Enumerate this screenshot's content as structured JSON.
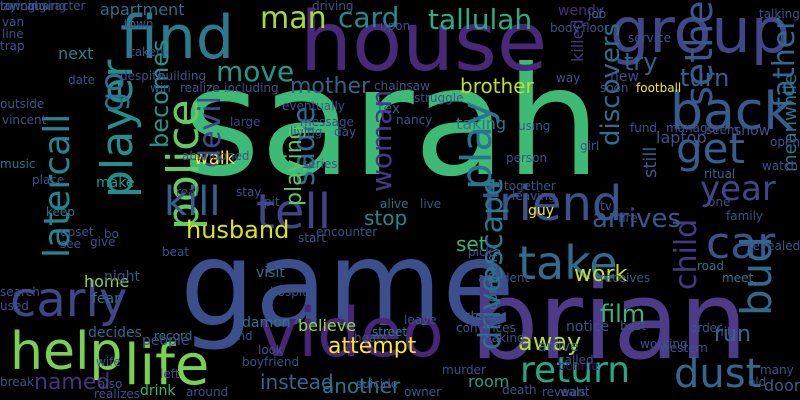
{
  "words": [
    {
      "text": "sarah",
      "color": "#3dbb76",
      "vertical": false
    },
    {
      "text": "game",
      "color": "#3b4f8c",
      "vertical": false
    },
    {
      "text": "brian",
      "color": "#4d3b8a",
      "vertical": false
    },
    {
      "text": "house",
      "color": "#482878",
      "vertical": false
    },
    {
      "text": "find",
      "color": "#2b7a8e",
      "vertical": false
    },
    {
      "text": "video",
      "color": "#482677",
      "vertical": false
    },
    {
      "text": "group",
      "color": "#3f4788",
      "vertical": false
    },
    {
      "text": "back",
      "color": "#365c8d",
      "vertical": false
    },
    {
      "text": "take",
      "color": "#2f6c8e",
      "vertical": false
    },
    {
      "text": "life",
      "color": "#79d151",
      "vertical": false
    },
    {
      "text": "help",
      "color": "#7ad151",
      "vertical": false
    },
    {
      "text": "friend",
      "color": "#3b528b",
      "vertical": false
    },
    {
      "text": "player",
      "color": "#21908d",
      "vertical": true
    },
    {
      "text": "police",
      "color": "#63cb5f",
      "vertical": true
    },
    {
      "text": "carly",
      "color": "#3f4788",
      "vertical": false
    },
    {
      "text": "tell",
      "color": "#414487",
      "vertical": false
    },
    {
      "text": "kill",
      "color": "#35608d",
      "vertical": false
    },
    {
      "text": "car",
      "color": "#3b528b",
      "vertical": false
    },
    {
      "text": "play",
      "color": "#2c738e",
      "vertical": true
    },
    {
      "text": "latercall",
      "color": "#25858e",
      "vertical": true
    },
    {
      "text": "dust",
      "color": "#31688e",
      "vertical": false
    },
    {
      "text": "return",
      "color": "#22a884",
      "vertical": false
    },
    {
      "text": "get",
      "color": "#355f8d",
      "vertical": false
    },
    {
      "text": "sethe",
      "color": "#38598c",
      "vertical": true
    },
    {
      "text": "bud",
      "color": "#31688e",
      "vertical": true
    },
    {
      "text": "father",
      "color": "#31688e",
      "vertical": true
    },
    {
      "text": "year",
      "color": "#3f4788",
      "vertical": false
    },
    {
      "text": "devil",
      "color": "#3e4a89",
      "vertical": true
    },
    {
      "text": "woman",
      "color": "#443983",
      "vertical": true
    },
    {
      "text": "sadie",
      "color": "#2e6e8e",
      "vertical": true
    },
    {
      "text": "card",
      "color": "#228c8d",
      "vertical": false
    },
    {
      "text": "tallulah",
      "color": "#28ae80",
      "vertical": false
    },
    {
      "text": "man",
      "color": "#a5db36",
      "vertical": false
    },
    {
      "text": "go",
      "color": "#2d718e",
      "vertical": true
    },
    {
      "text": "move",
      "color": "#1f9a8a",
      "vertical": false
    },
    {
      "text": "husband",
      "color": "#dde318",
      "vertical": false
    },
    {
      "text": "child",
      "color": "#443a83",
      "vertical": true
    },
    {
      "text": "escape",
      "color": "#2a788e",
      "vertical": true
    },
    {
      "text": "drive",
      "color": "#2e6f8e",
      "vertical": true
    },
    {
      "text": "away",
      "color": "#b8de29",
      "vertical": false
    },
    {
      "text": "attempt",
      "color": "#fde725",
      "vertical": false
    },
    {
      "text": "arrives",
      "color": "#38588c",
      "vertical": false
    },
    {
      "text": "discovers",
      "color": "#2d708e",
      "vertical": true
    },
    {
      "text": "try",
      "color": "#33628d",
      "vertical": false
    },
    {
      "text": "turn",
      "color": "#33628d",
      "vertical": false
    },
    {
      "text": "becomes",
      "color": "#1f968b",
      "vertical": true
    },
    {
      "text": "brother",
      "color": "#bddf26",
      "vertical": false
    },
    {
      "text": "mother",
      "color": "#33628d",
      "vertical": false
    },
    {
      "text": "killed",
      "color": "#443983",
      "vertical": true
    },
    {
      "text": "named",
      "color": "#46337f",
      "vertical": false
    },
    {
      "text": "instead",
      "color": "#31688e",
      "vertical": false
    },
    {
      "text": "another",
      "color": "#2a768e",
      "vertical": false
    },
    {
      "text": "film",
      "color": "#35b779",
      "vertical": false
    },
    {
      "text": "work",
      "color": "#c2df23",
      "vertical": false
    },
    {
      "text": "playing",
      "color": "#5ec962",
      "vertical": true
    },
    {
      "text": "stop",
      "color": "#24878e",
      "vertical": false
    },
    {
      "text": "set",
      "color": "#37b878",
      "vertical": false
    },
    {
      "text": "run",
      "color": "#31688e",
      "vertical": false
    },
    {
      "text": "still",
      "color": "#38598c",
      "vertical": true
    },
    {
      "text": "show",
      "color": "#39568c",
      "vertical": false
    },
    {
      "text": "tex",
      "color": "#38588c",
      "vertical": false
    },
    {
      "text": "damon",
      "color": "#2a768e",
      "vertical": false
    },
    {
      "text": "believe",
      "color": "#90d743",
      "vertical": false
    },
    {
      "text": "notice",
      "color": "#3b528b",
      "vertical": false
    },
    {
      "text": "arrive",
      "color": "#2e6e8e",
      "vertical": false
    },
    {
      "text": "taking",
      "color": "#2a788e",
      "vertical": false
    },
    {
      "text": "room",
      "color": "#1fa088",
      "vertical": false
    },
    {
      "text": "home",
      "color": "#95d840",
      "vertical": false
    },
    {
      "text": "night",
      "color": "#3b528b",
      "vertical": false
    },
    {
      "text": "walk",
      "color": "#fde725",
      "vertical": false
    },
    {
      "text": "make",
      "color": "#1f9a8a",
      "vertical": false
    },
    {
      "text": "next",
      "color": "#26828e",
      "vertical": false
    },
    {
      "text": "new",
      "color": "#3e4989",
      "vertical": false
    },
    {
      "text": "laptop",
      "color": "#3b528b",
      "vertical": false
    },
    {
      "text": "meanwhile",
      "color": "#2c738e",
      "vertical": true
    },
    {
      "text": "company",
      "color": "#2c718e",
      "vertical": true
    },
    {
      "text": "guy",
      "color": "#fde725",
      "vertical": false
    },
    {
      "text": "door",
      "color": "#38598c",
      "vertical": false
    },
    {
      "text": "meet",
      "color": "#2a788e",
      "vertical": false
    },
    {
      "text": "road",
      "color": "#2d718e",
      "vertical": false
    },
    {
      "text": "wendy",
      "color": "#46307e",
      "vertical": false
    },
    {
      "text": "apartment",
      "color": "#2e6e8e",
      "vertical": false
    },
    {
      "text": "character",
      "color": "#3b528b",
      "vertical": false
    },
    {
      "text": "fear",
      "color": "#2d718e",
      "vertical": false
    },
    {
      "text": "visit",
      "color": "#2c738e",
      "vertical": false
    },
    {
      "text": "street",
      "color": "#26828e",
      "vertical": false
    },
    {
      "text": "leave",
      "color": "#3b528b",
      "vertical": false
    },
    {
      "text": "chase",
      "color": "#33638d",
      "vertical": false
    },
    {
      "text": "bonnie",
      "color": "#471063",
      "vertical": false
    },
    {
      "text": "football",
      "color": "#fde725",
      "vertical": false
    },
    {
      "text": "message",
      "color": "#3e4989",
      "vertical": false
    },
    {
      "text": "large",
      "color": "#414487",
      "vertical": false
    },
    {
      "text": "record",
      "color": "#2a768e",
      "vertical": false
    },
    {
      "text": "decides",
      "color": "#31688e",
      "vertical": false
    },
    {
      "text": "people",
      "color": "#3b528b",
      "vertical": false
    },
    {
      "text": "drink",
      "color": "#30b57a",
      "vertical": false
    },
    {
      "text": "also",
      "color": "#3b528b",
      "vertical": false
    },
    {
      "text": "left",
      "color": "#414487",
      "vertical": false
    },
    {
      "text": "music",
      "color": "#2a768e",
      "vertical": false
    },
    {
      "text": "keep",
      "color": "#2a788e",
      "vertical": false
    },
    {
      "text": "see",
      "color": "#3b528b",
      "vertical": false
    },
    {
      "text": "job",
      "color": "#33638d",
      "vertical": false
    },
    {
      "text": "alive",
      "color": "#2c738e",
      "vertical": false
    },
    {
      "text": "live",
      "color": "#3b528b",
      "vertical": false
    },
    {
      "text": "order",
      "color": "#3b528b",
      "vertical": false
    },
    {
      "text": "hit",
      "color": "#3b528b",
      "vertical": false
    },
    {
      "text": "many",
      "color": "#3b528b",
      "vertical": false
    },
    {
      "text": "watch",
      "color": "#3b528b",
      "vertical": false
    },
    {
      "text": "ritual",
      "color": "#33638d",
      "vertical": false
    },
    {
      "text": "family",
      "color": "#3b528b",
      "vertical": false
    },
    {
      "text": "one",
      "color": "#3b528b",
      "vertical": false
    },
    {
      "text": "open",
      "color": "#3b528b",
      "vertical": false
    },
    {
      "text": "van",
      "color": "#3b528b",
      "vertical": false
    },
    {
      "text": "town",
      "color": "#3b528b",
      "vertical": false
    },
    {
      "text": "line",
      "color": "#3b528b",
      "vertical": false
    },
    {
      "text": "trap",
      "color": "#3b528b",
      "vertical": false
    },
    {
      "text": "date",
      "color": "#3b528b",
      "vertical": false
    },
    {
      "text": "outside",
      "color": "#3b528b",
      "vertical": false
    },
    {
      "text": "despite",
      "color": "#3b528b",
      "vertical": false
    },
    {
      "text": "building",
      "color": "#3b528b",
      "vertical": false
    },
    {
      "text": "including",
      "color": "#3b528b",
      "vertical": false
    },
    {
      "text": "taken",
      "color": "#3b528b",
      "vertical": false
    },
    {
      "text": "win",
      "color": "#3b528b",
      "vertical": false
    },
    {
      "text": "realize",
      "color": "#3b528b",
      "vertical": false
    },
    {
      "text": "causing",
      "color": "#3b528b",
      "vertical": false
    },
    {
      "text": "place",
      "color": "#3b528b",
      "vertical": false
    },
    {
      "text": "upset",
      "color": "#3b528b",
      "vertical": false
    },
    {
      "text": "give",
      "color": "#3b528b",
      "vertical": false
    },
    {
      "text": "search",
      "color": "#3b528b",
      "vertical": false
    },
    {
      "text": "used",
      "color": "#3b528b",
      "vertical": false
    },
    {
      "text": "wife",
      "color": "#3b528b",
      "vertical": false
    },
    {
      "text": "break",
      "color": "#3b528b",
      "vertical": false
    },
    {
      "text": "realizes",
      "color": "#3b528b",
      "vertical": false
    },
    {
      "text": "around",
      "color": "#3b528b",
      "vertical": false
    },
    {
      "text": "boyfriend",
      "color": "#3b528b",
      "vertical": false
    },
    {
      "text": "owner",
      "color": "#3b528b",
      "vertical": false
    },
    {
      "text": "murder",
      "color": "#3b528b",
      "vertical": false
    },
    {
      "text": "death",
      "color": "#3b528b",
      "vertical": false
    },
    {
      "text": "reveals",
      "color": "#3b528b",
      "vertical": false
    },
    {
      "text": "want",
      "color": "#3b528b",
      "vertical": false
    },
    {
      "text": "called",
      "color": "#3b528b",
      "vertical": false
    },
    {
      "text": "best",
      "color": "#3b528b",
      "vertical": false
    },
    {
      "text": "western",
      "color": "#3b528b",
      "vertical": false
    },
    {
      "text": "working",
      "color": "#3b528b",
      "vertical": false
    },
    {
      "text": "revealed",
      "color": "#3b528b",
      "vertical": false
    },
    {
      "text": "beat",
      "color": "#3b528b",
      "vertical": false
    },
    {
      "text": "real",
      "color": "#3b528b",
      "vertical": false
    },
    {
      "text": "pit",
      "color": "#3b528b",
      "vertical": false
    },
    {
      "text": "series",
      "color": "#3b528b",
      "vertical": false
    },
    {
      "text": "start",
      "color": "#3b528b",
      "vertical": false
    },
    {
      "text": "encounter",
      "color": "#3b528b",
      "vertical": false
    },
    {
      "text": "hospital",
      "color": "#3b528b",
      "vertical": false
    },
    {
      "text": "look",
      "color": "#3b528b",
      "vertical": false
    },
    {
      "text": "end",
      "color": "#3b528b",
      "vertical": false
    },
    {
      "text": "suicide",
      "color": "#3b528b",
      "vertical": false
    },
    {
      "text": "hears",
      "color": "#3b528b",
      "vertical": false
    },
    {
      "text": "convinces",
      "color": "#3b528b",
      "vertical": false
    },
    {
      "text": "making",
      "color": "#3b528b",
      "vertical": false
    },
    {
      "text": "accident",
      "color": "#3b528b",
      "vertical": false
    },
    {
      "text": "receives",
      "color": "#3b528b",
      "vertical": false
    },
    {
      "text": "fire",
      "color": "#3b528b",
      "vertical": false
    },
    {
      "text": "together",
      "color": "#3b528b",
      "vertical": false
    },
    {
      "text": "leaving",
      "color": "#3b528b",
      "vertical": false
    },
    {
      "text": "person",
      "color": "#3b528b",
      "vertical": false
    },
    {
      "text": "using",
      "color": "#3b528b",
      "vertical": false
    },
    {
      "text": "soon",
      "color": "#3b528b",
      "vertical": false
    },
    {
      "text": "fund",
      "color": "#3b528b",
      "vertical": false
    },
    {
      "text": "manager",
      "color": "#3b528b",
      "vertical": false
    },
    {
      "text": "seem",
      "color": "#3b528b",
      "vertical": false
    },
    {
      "text": "service",
      "color": "#3b528b",
      "vertical": false
    },
    {
      "text": "way",
      "color": "#3b528b",
      "vertical": false
    },
    {
      "text": "floor",
      "color": "#3b528b",
      "vertical": false
    },
    {
      "text": "body",
      "color": "#3b528b",
      "vertical": false
    },
    {
      "text": "upon",
      "color": "#3b528b",
      "vertical": false
    },
    {
      "text": "nancy",
      "color": "#3b528b",
      "vertical": false
    },
    {
      "text": "struggle",
      "color": "#3b528b",
      "vertical": false
    },
    {
      "text": "eventually",
      "color": "#3b528b",
      "vertical": false
    },
    {
      "text": "living",
      "color": "#3b528b",
      "vertical": false
    },
    {
      "text": "driving",
      "color": "#3b528b",
      "vertical": false
    },
    {
      "text": "chainsaw",
      "color": "#3b528b",
      "vertical": false
    },
    {
      "text": "day",
      "color": "#3b528b",
      "vertical": false
    },
    {
      "text": "bo",
      "color": "#3b528b",
      "vertical": false
    },
    {
      "text": "talking",
      "color": "#3b528b",
      "vertical": false
    },
    {
      "text": "vincent",
      "color": "#3b528b",
      "vertical": false
    },
    {
      "text": "stay",
      "color": "#3b528b",
      "vertical": false
    },
    {
      "text": "abandoned",
      "color": "#3b528b",
      "vertical": false
    },
    {
      "text": "pick",
      "color": "#3b528b",
      "vertical": false
    },
    {
      "text": "old",
      "color": "#3b528b",
      "vertical": false
    },
    {
      "text": "tv",
      "color": "#3b528b",
      "vertical": false
    },
    {
      "text": "girl",
      "color": "#3b528b",
      "vertical": false
    },
    {
      "text": "law",
      "color": "#3b528b",
      "vertical": false
    },
    {
      "text": "running",
      "color": "#3b528b",
      "vertical": false
    },
    {
      "text": "trying",
      "color": "#3b528b",
      "vertical": false
    }
  ]
}
